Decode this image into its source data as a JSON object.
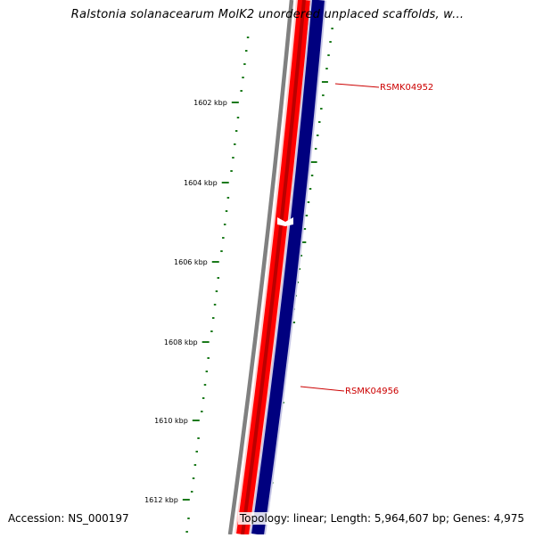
{
  "title": "Ralstonia solanacearum MolK2 unordered unplaced scaffolds, w...",
  "ruler": {
    "labels": [
      "1602 kbp",
      "1604 kbp",
      "1606 kbp",
      "1608 kbp",
      "1610 kbp",
      "1612 kbp"
    ],
    "tick_color": "#1b7a1b"
  },
  "tracks": {
    "backbone_color": "#808080",
    "forward_color": "#ff0000",
    "reverse_color": "#00007f"
  },
  "genes": [
    {
      "label": "RSMK04952",
      "color": "#cc0000"
    },
    {
      "label": "RSMK04956",
      "color": "#cc0000"
    }
  ],
  "footer": {
    "accession": "Accession: NS_000197",
    "summary": "Topology: linear; Length: 5,964,607 bp; Genes: 4,975"
  }
}
